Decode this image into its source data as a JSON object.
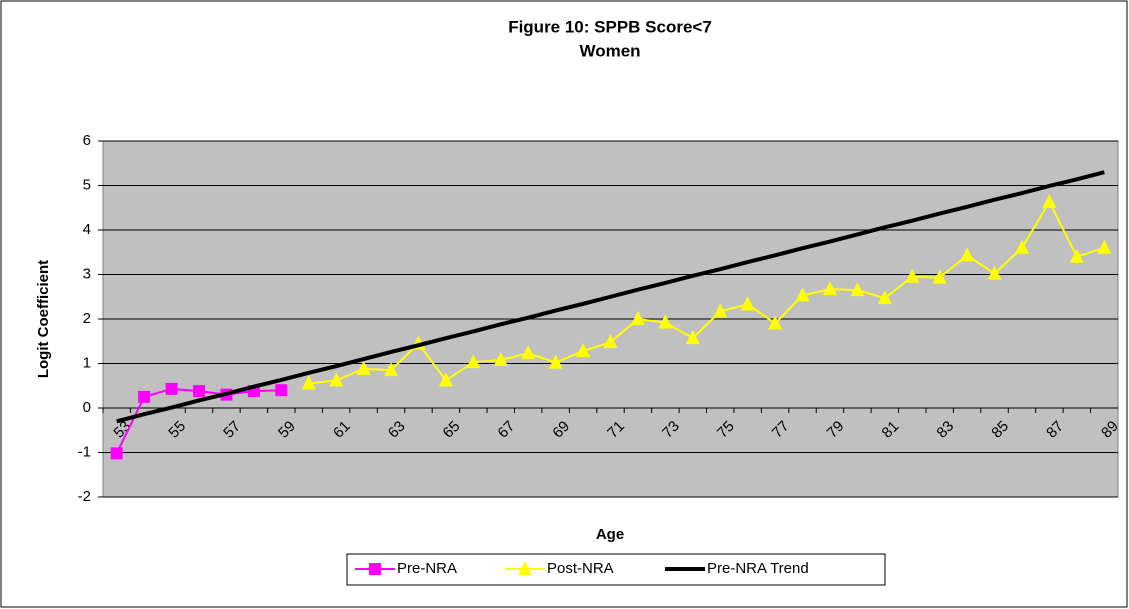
{
  "chart_data": {
    "type": "line",
    "title": "Figure 10: SPPB Score<7",
    "subtitle": "Women",
    "x_label": "Age",
    "y_label": "Logit Coefficient",
    "categories": [
      "53",
      null,
      "55",
      null,
      "57",
      null,
      "59",
      null,
      "61",
      null,
      "63",
      null,
      "65",
      null,
      "67",
      null,
      "69",
      null,
      "71",
      null,
      "73",
      null,
      "75",
      null,
      "77",
      null,
      "79",
      null,
      "81",
      null,
      "83",
      null,
      "85",
      null,
      "87",
      null,
      "89"
    ],
    "series": [
      {
        "name": "Pre-NRA",
        "color": "#ff00ff",
        "marker": "square",
        "values": [
          -1.02,
          0.25,
          0.43,
          0.38,
          0.3,
          0.38,
          0.4,
          null,
          null,
          null,
          null,
          null,
          null,
          null,
          null,
          null,
          null,
          null,
          null,
          null,
          null,
          null,
          null,
          null,
          null,
          null,
          null,
          null,
          null,
          null,
          null,
          null,
          null,
          null,
          null,
          null,
          null
        ]
      },
      {
        "name": "Post-NRA",
        "color": "#ffff00",
        "marker": "triangle",
        "values": [
          null,
          null,
          null,
          null,
          null,
          null,
          null,
          0.55,
          0.62,
          0.88,
          0.85,
          1.45,
          0.62,
          1.03,
          1.08,
          1.23,
          1.02,
          1.28,
          1.48,
          2.0,
          1.92,
          1.57,
          2.17,
          2.33,
          1.9,
          2.53,
          2.67,
          2.65,
          2.47,
          2.95,
          2.93,
          3.43,
          3.02,
          3.6,
          4.63,
          3.4,
          3.6
        ]
      },
      {
        "name": "Pre-NRA Trend",
        "color": "#000000",
        "marker": "none",
        "values": [
          -0.3,
          -0.14,
          0.01,
          0.17,
          0.32,
          0.48,
          0.63,
          0.79,
          0.94,
          1.1,
          1.26,
          1.41,
          1.57,
          1.72,
          1.88,
          2.03,
          2.19,
          2.34,
          2.5,
          2.66,
          2.81,
          2.97,
          3.12,
          3.28,
          3.43,
          3.59,
          3.74,
          3.9,
          4.06,
          4.21,
          4.37,
          4.52,
          4.68,
          4.83,
          4.99,
          5.14,
          5.3
        ]
      }
    ],
    "ylim": [
      -2,
      6
    ],
    "yticks": [
      -2,
      -1,
      0,
      1,
      2,
      3,
      4,
      5,
      6
    ],
    "grid": true,
    "legend": "bottom",
    "plot_background": "#c0c0c0"
  }
}
